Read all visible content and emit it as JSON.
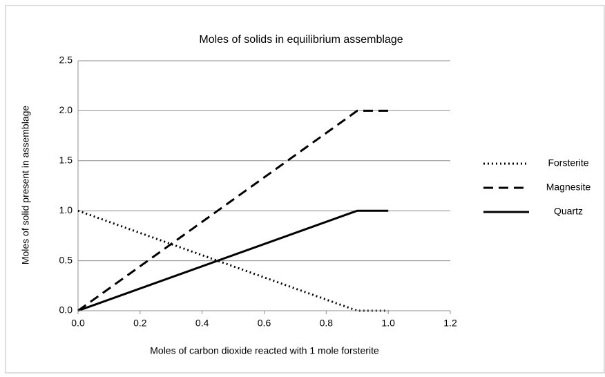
{
  "chart_data": {
    "type": "line",
    "title": "Moles of solids in equilibrium assemblage",
    "x_label": "Moles of carbon dioxide reacted with 1 mole forsterite",
    "y_label": "Moles of solid present in assemblage",
    "x": [
      0,
      0.9,
      1
    ],
    "series": [
      {
        "name": "Forsterite",
        "color": "#000000",
        "dash": "dotted",
        "values": [
          1,
          0,
          0
        ]
      },
      {
        "name": "Magnesite",
        "color": "#000000",
        "dash": "dashed",
        "values": [
          0,
          2,
          2
        ]
      },
      {
        "name": "Quartz",
        "color": "#000000",
        "dash": "solid",
        "values": [
          0,
          1,
          1
        ]
      }
    ],
    "xlim": [
      0,
      1.2
    ],
    "xticks": [
      {
        "value": 0,
        "label": "0.0"
      },
      {
        "value": 0.2,
        "label": "0.2"
      },
      {
        "value": 0.4,
        "label": "0.4"
      },
      {
        "value": 0.6,
        "label": "0.6"
      },
      {
        "value": 0.8,
        "label": "0.8"
      },
      {
        "value": 1,
        "label": "1.0"
      },
      {
        "value": 1.2,
        "label": "1.2"
      }
    ],
    "ylim": [
      0,
      2.5
    ],
    "yticks": [
      {
        "value": 0,
        "label": "0.0"
      },
      {
        "value": 0.5,
        "label": "0.5"
      },
      {
        "value": 1,
        "label": "1.0"
      },
      {
        "value": 1.5,
        "label": "1.5"
      },
      {
        "value": 2,
        "label": "2.0"
      },
      {
        "value": 2.5,
        "label": "2.5"
      }
    ],
    "grid": true,
    "legend": "right"
  }
}
